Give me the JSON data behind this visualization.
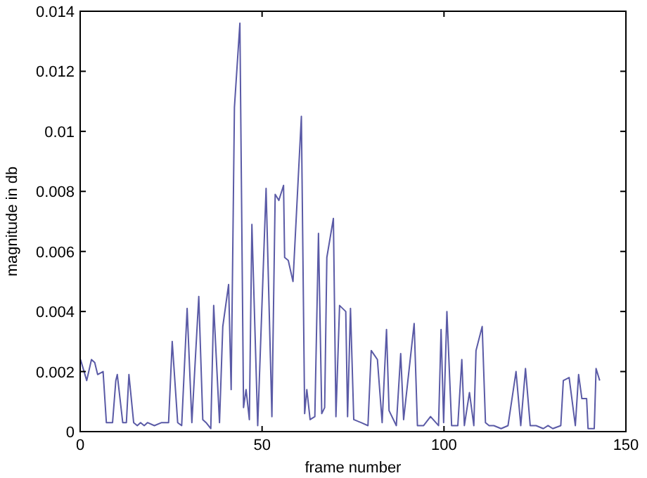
{
  "chart_data": {
    "type": "line",
    "xlabel": "frame number",
    "ylabel": "magnitude in db",
    "xlim": [
      0,
      150
    ],
    "ylim": [
      0,
      0.014
    ],
    "xticks": [
      0,
      50,
      100,
      150
    ],
    "yticks": [
      0,
      0.002,
      0.004,
      0.006,
      0.008,
      0.01,
      0.012,
      0.014
    ],
    "line_style": "solid",
    "marker": "none",
    "series": [
      {
        "color": "#5a5aa6",
        "x": [
          0.1,
          1.8,
          3.1,
          4.0,
          4.8,
          6.3,
          7.2,
          8.9,
          9.8,
          10.2,
          11.7,
          12.7,
          13.4,
          14.7,
          15.7,
          16.6,
          17.6,
          18.5,
          20.4,
          22.4,
          24.3,
          25.3,
          26.8,
          27.9,
          29.4,
          30.7,
          32.6,
          33.7,
          34.6,
          35.9,
          36.7,
          38.3,
          39.2,
          40.8,
          41.5,
          42.4,
          43.9,
          44.9,
          45.6,
          46.5,
          47.2,
          48.8,
          51.1,
          52.7,
          53.6,
          54.6,
          55.9,
          56.2,
          57.2,
          58.5,
          60.8,
          61.7,
          62.3,
          63.2,
          64.5,
          65.5,
          66.4,
          67.2,
          67.8,
          69.6,
          70.3,
          71.3,
          73.0,
          73.5,
          74.3,
          75.2,
          77.2,
          79.1,
          80.0,
          81.7,
          83.0,
          84.2,
          84.9,
          86.9,
          88.1,
          88.9,
          91.8,
          92.7,
          94.4,
          96.3,
          98.5,
          99.2,
          99.9,
          100.8,
          102.1,
          103.8,
          104.9,
          105.6,
          107.0,
          108.2,
          108.8,
          110.5,
          111.4,
          112.4,
          113.7,
          115.7,
          117.6,
          119.8,
          121.1,
          122.4,
          123.7,
          125.3,
          127.3,
          128.6,
          129.9,
          132.1,
          132.8,
          134.4,
          136.1,
          137.0,
          137.9,
          139.2,
          139.6,
          141.3,
          141.8,
          142.8
        ],
        "values": [
          0.0024,
          0.0017,
          0.0024,
          0.0023,
          0.0019,
          0.002,
          0.0003,
          0.0003,
          0.0017,
          0.0019,
          0.0003,
          0.0003,
          0.0019,
          0.0003,
          0.0002,
          0.0003,
          0.0002,
          0.0003,
          0.0002,
          0.0003,
          0.0003,
          0.003,
          0.0003,
          0.0002,
          0.0041,
          0.0003,
          0.0045,
          0.0004,
          0.0003,
          0.0001,
          0.0042,
          0.0003,
          0.0035,
          0.0049,
          0.0014,
          0.0108,
          0.0136,
          0.0008,
          0.0014,
          0.0004,
          0.0069,
          0.0002,
          0.0081,
          0.0005,
          0.0079,
          0.0077,
          0.0082,
          0.0058,
          0.0057,
          0.005,
          0.0105,
          0.0006,
          0.0014,
          0.0004,
          0.0005,
          0.0066,
          0.0006,
          0.0008,
          0.0058,
          0.0071,
          0.0005,
          0.0042,
          0.004,
          0.0005,
          0.0041,
          0.0004,
          0.0003,
          0.0002,
          0.0027,
          0.0024,
          0.0003,
          0.0034,
          0.0007,
          0.0002,
          0.0026,
          0.0004,
          0.0036,
          0.0002,
          0.0002,
          0.0005,
          0.0002,
          0.0034,
          0.0003,
          0.004,
          0.0002,
          0.0002,
          0.0024,
          0.0002,
          0.0013,
          0.0002,
          0.0027,
          0.0035,
          0.0003,
          0.0002,
          0.0002,
          0.0001,
          0.0002,
          0.002,
          0.0002,
          0.0021,
          0.0002,
          0.0002,
          0.0001,
          0.0002,
          0.0001,
          0.0002,
          0.0017,
          0.0018,
          0.0002,
          0.0019,
          0.0011,
          0.0011,
          0.0001,
          0.0001,
          0.0021,
          0.0017
        ]
      }
    ]
  }
}
